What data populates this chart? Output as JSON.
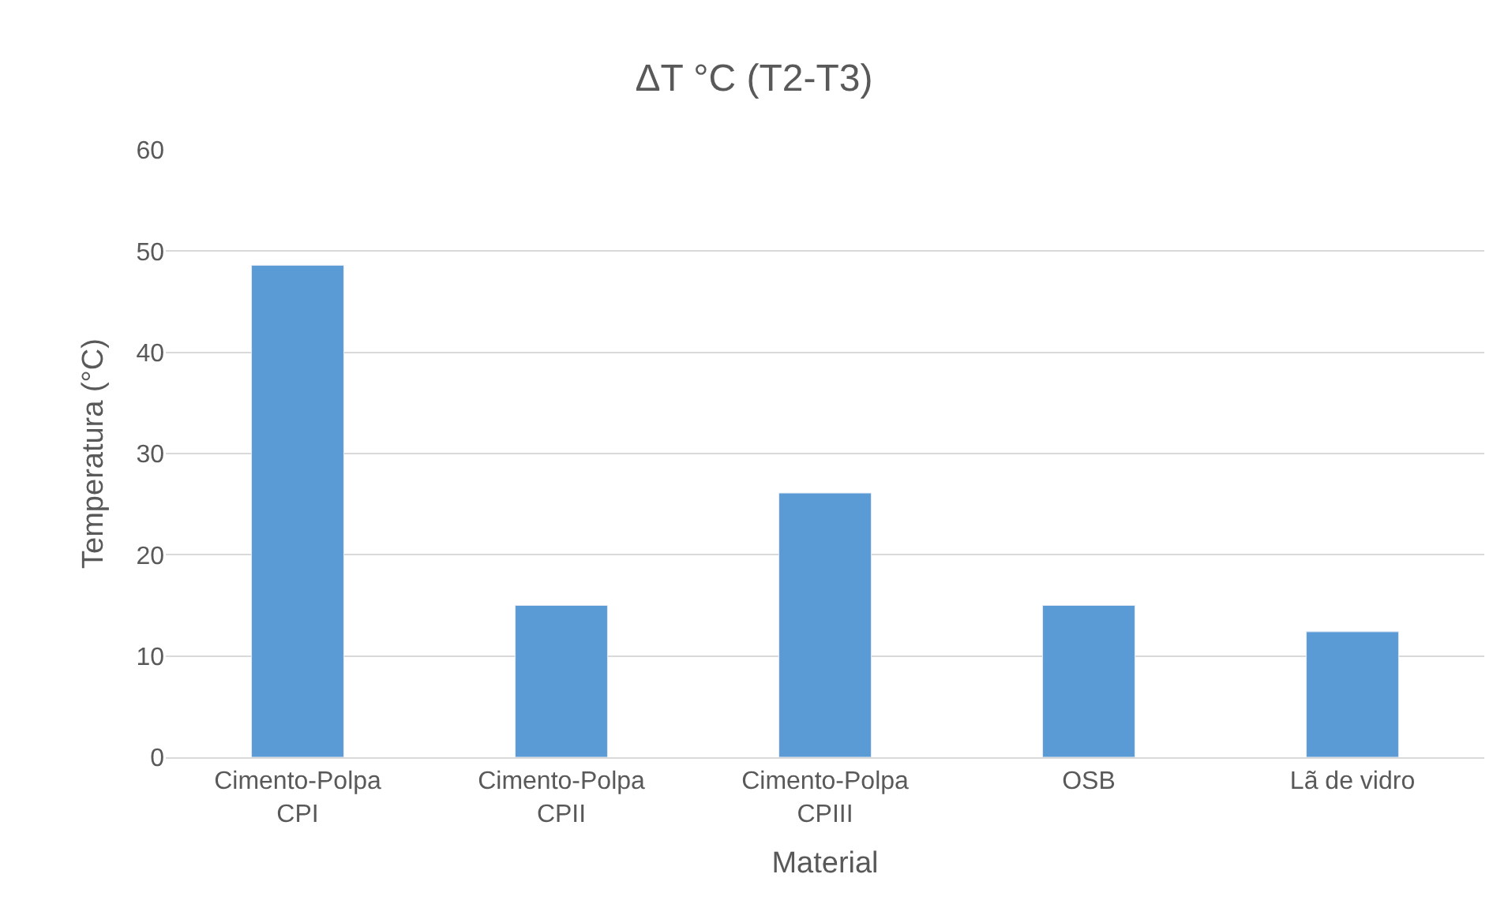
{
  "chart_data": {
    "type": "bar",
    "title": "ΔT °C (T2-T3)",
    "xlabel": "Material",
    "ylabel": "Temperatura (°C)",
    "categories": [
      "Cimento-Polpa\nCPI",
      "Cimento-Polpa\nCPII",
      "Cimento-Polpa\nCPIII",
      "OSB",
      "Lã de vidro"
    ],
    "values": [
      48.6,
      15.0,
      26.1,
      15.0,
      12.4
    ],
    "color": "#5b9bd5",
    "ylim": [
      0,
      60
    ],
    "yticks": [
      0,
      10,
      20,
      30,
      40,
      50,
      60
    ],
    "grid": "y"
  }
}
